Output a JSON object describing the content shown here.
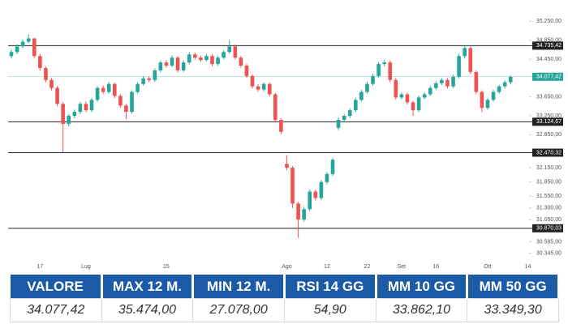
{
  "chart_data": {
    "type": "candlestick",
    "categories": [
      null,
      null,
      null,
      null,
      null,
      "17",
      null,
      null,
      null,
      null,
      null,
      null,
      null,
      "Lug",
      null,
      null,
      null,
      null,
      null,
      null,
      null,
      null,
      null,
      null,
      null,
      null,
      null,
      "15",
      null,
      null,
      null,
      null,
      null,
      null,
      null,
      null,
      null,
      null,
      null,
      null,
      null,
      null,
      null,
      null,
      null,
      null,
      null,
      null,
      "Ago",
      null,
      null,
      null,
      null,
      null,
      null,
      "12",
      null,
      null,
      null,
      null,
      null,
      null,
      "22",
      null,
      null,
      null,
      null,
      null,
      "Set",
      null,
      null,
      null,
      null,
      null,
      "16",
      null,
      null,
      null,
      null,
      null,
      null,
      null,
      null,
      "Ott",
      null,
      null,
      null,
      null,
      null,
      null,
      "14",
      null
    ],
    "open": [
      34515,
      34600,
      34718,
      34819,
      34887,
      34515,
      34262,
      34009,
      33840,
      33503,
      33081,
      33249,
      33334,
      33503,
      33368,
      33587,
      33840,
      33756,
      33925,
      33671,
      33469,
      33334,
      33756,
      33925,
      34043,
      34009,
      34212,
      34380,
      34313,
      34482,
      34212,
      34380,
      34549,
      34482,
      34431,
      34515,
      34347,
      34482,
      34600,
      34718,
      34482,
      34313,
      34093,
      33874,
      33806,
      33925,
      33705,
      33165,
      32234,
      32152,
      31393,
      31055,
      31274,
      31646,
      31511,
      31848,
      32017,
      32996,
      33165,
      33249,
      33368,
      33587,
      33756,
      33925,
      34093,
      34347,
      34380,
      34009,
      33638,
      33705,
      33536,
      33368,
      33638,
      33705,
      33840,
      33941,
      34009,
      33874,
      34077,
      34515,
      34684,
      34178,
      33756,
      33418,
      33587,
      33756,
      33874,
      33960,
      null,
      null,
      null,
      null
    ],
    "high": [
      34650,
      34760,
      34860,
      34971,
      34900,
      34560,
      34300,
      34050,
      33880,
      33540,
      33290,
      33380,
      33540,
      33550,
      33630,
      33880,
      33890,
      33970,
      33960,
      33710,
      33500,
      33790,
      33960,
      34090,
      34080,
      34250,
      34420,
      34430,
      34530,
      34520,
      34420,
      34600,
      34590,
      34520,
      34560,
      34550,
      34520,
      34640,
      34853,
      34760,
      34520,
      34350,
      34130,
      33920,
      33960,
      33960,
      33740,
      33200,
      32420,
      32190,
      31430,
      31320,
      31690,
      31690,
      31890,
      32060,
      32360,
      33210,
      33290,
      33410,
      33630,
      33800,
      33970,
      34140,
      34390,
      34430,
      34420,
      34050,
      33750,
      33740,
      33570,
      33680,
      33750,
      33880,
      33980,
      34050,
      34050,
      34120,
      34560,
      34735.42,
      34720,
      34220,
      33790,
      33630,
      33800,
      33910,
      34000,
      34110,
      null,
      null,
      null,
      null
    ],
    "low": [
      34470,
      34560,
      34680,
      34780,
      34470,
      34210,
      33960,
      33790,
      33450,
      32470.32,
      33030,
      33200,
      33290,
      33330,
      33330,
      33550,
      33710,
      33720,
      33630,
      33420,
      33180,
      33300,
      33720,
      33890,
      33960,
      33970,
      34170,
      34270,
      34280,
      34170,
      34180,
      34340,
      34440,
      34390,
      34400,
      34300,
      34310,
      34450,
      34570,
      34440,
      34270,
      34050,
      33830,
      33760,
      33770,
      33660,
      33124.67,
      32860,
      32100,
      31300,
      30667,
      31010,
      31230,
      31460,
      31470,
      31800,
      31980,
      32950,
      33120,
      33200,
      33330,
      33550,
      33720,
      33890,
      34060,
      34300,
      33960,
      33590,
      33600,
      33490,
      33250,
      33330,
      33600,
      33670,
      33800,
      33900,
      33830,
      33840,
      34040,
      34470,
      34130,
      33710,
      33330,
      33380,
      33550,
      33720,
      33830,
      33920,
      null,
      null,
      null,
      null
    ],
    "close": [
      34600,
      34718,
      34819,
      34887,
      34515,
      34262,
      34009,
      33840,
      33503,
      33081,
      33249,
      33334,
      33503,
      33368,
      33587,
      33840,
      33756,
      33925,
      33671,
      33469,
      33334,
      33756,
      33925,
      34043,
      34009,
      34212,
      34380,
      34313,
      34482,
      34212,
      34380,
      34549,
      34482,
      34431,
      34515,
      34347,
      34482,
      34600,
      34718,
      34482,
      34313,
      34093,
      33874,
      33806,
      33925,
      33705,
      33165,
      32912,
      32152,
      31393,
      31055,
      31274,
      31646,
      31511,
      31848,
      32017,
      32321,
      33165,
      33249,
      33368,
      33587,
      33756,
      33925,
      34093,
      34347,
      34380,
      34009,
      33638,
      33705,
      33536,
      33368,
      33638,
      33705,
      33840,
      33941,
      34009,
      33874,
      34077,
      34515,
      34684,
      34178,
      33756,
      33418,
      33587,
      33756,
      33874,
      33960,
      34077.42,
      null,
      null,
      null,
      null
    ],
    "up_color": "#26a69a",
    "down_color": "#ef5350",
    "ylim": [
      30250,
      35359
    ],
    "yticks": [
      {
        "value": 35250,
        "label": "35.250,00"
      },
      {
        "value": 34850,
        "label": "34.850,00"
      },
      {
        "value": 34450,
        "label": "34.450,00"
      },
      {
        "value": 33650,
        "label": "33.650,00"
      },
      {
        "value": 33250,
        "label": "33.250,00"
      },
      {
        "value": 32850,
        "label": "32.850,00"
      },
      {
        "value": 32150,
        "label": "32.150,00"
      },
      {
        "value": 31850,
        "label": "31.850,00"
      },
      {
        "value": 31550,
        "label": "31.550,00"
      },
      {
        "value": 31300,
        "label": "31.300,00"
      },
      {
        "value": 31050,
        "label": "31.050,00"
      },
      {
        "value": 30585,
        "label": "30.585,00"
      },
      {
        "value": 30345,
        "label": "30.345,00"
      }
    ],
    "levels": [
      {
        "value": 34735.42,
        "label": "34.735,42"
      },
      {
        "value": 33124.67,
        "label": "33.124,67"
      },
      {
        "value": 32470.32,
        "label": "32.470,32"
      },
      {
        "value": 30870.03,
        "label": "30.870,03"
      }
    ],
    "level_color": "#222",
    "last": {
      "value": 34077.42,
      "label": "34.077,42"
    },
    "last_color": "#26a69a"
  },
  "table": {
    "headers": [
      "VALORE",
      "MAX 12 M.",
      "MIN 12 M.",
      "RSI 14 GG",
      "MM 10 GG",
      "MM 50 GG"
    ],
    "rows": [
      [
        "34.077,42",
        "35.474,00",
        "27.078,00",
        "54,90",
        "33.862,10",
        "33.349,30"
      ]
    ]
  }
}
